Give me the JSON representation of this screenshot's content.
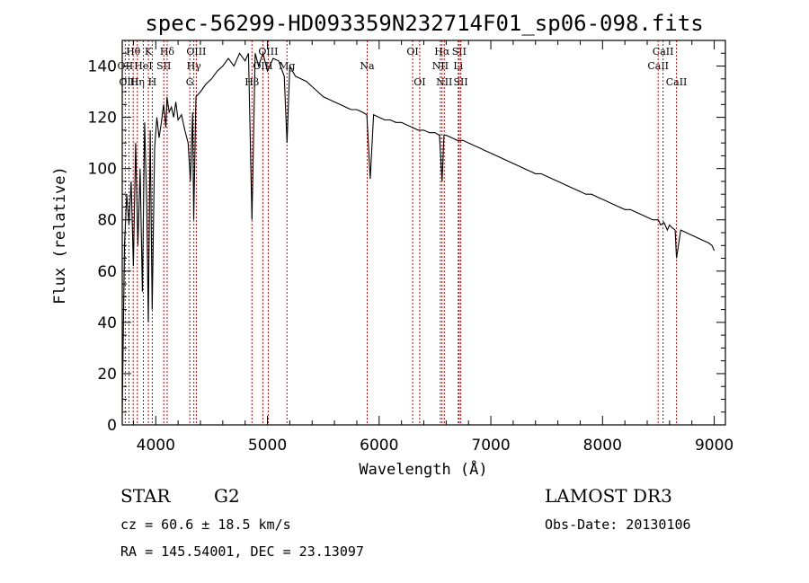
{
  "chart_data": {
    "type": "line",
    "title": "spec-56299-HD093359N232714F01_sp06-098.fits",
    "xlabel": "Wavelength (Å)",
    "ylabel": "Flux (relative)",
    "xlim": [
      3700,
      9100
    ],
    "ylim": [
      0,
      150
    ],
    "xticks": [
      4000,
      5000,
      6000,
      7000,
      8000,
      9000
    ],
    "yticks": [
      0,
      20,
      40,
      60,
      80,
      100,
      120,
      140
    ],
    "line_color": "#000000",
    "marker_color": "#cc0000",
    "series": [
      {
        "name": "spectrum",
        "x": [
          3700,
          3720,
          3740,
          3760,
          3780,
          3800,
          3820,
          3840,
          3860,
          3880,
          3900,
          3920,
          3933,
          3950,
          3968,
          3990,
          4010,
          4030,
          4050,
          4070,
          4090,
          4101,
          4120,
          4140,
          4160,
          4180,
          4200,
          4230,
          4260,
          4290,
          4310,
          4330,
          4340,
          4360,
          4400,
          4450,
          4500,
          4550,
          4600,
          4650,
          4700,
          4750,
          4800,
          4830,
          4861,
          4890,
          4920,
          4960,
          5000,
          5050,
          5100,
          5150,
          5175,
          5200,
          5250,
          5300,
          5350,
          5400,
          5450,
          5500,
          5550,
          5600,
          5650,
          5700,
          5750,
          5800,
          5850,
          5890,
          5920,
          5950,
          6000,
          6050,
          6100,
          6150,
          6200,
          6250,
          6300,
          6350,
          6400,
          6450,
          6500,
          6540,
          6563,
          6580,
          6600,
          6650,
          6700,
          6750,
          6800,
          6850,
          6900,
          6950,
          7000,
          7050,
          7100,
          7150,
          7200,
          7250,
          7300,
          7350,
          7400,
          7450,
          7500,
          7550,
          7600,
          7650,
          7700,
          7750,
          7800,
          7850,
          7900,
          7950,
          8000,
          8050,
          8100,
          8150,
          8200,
          8250,
          8300,
          8350,
          8400,
          8450,
          8500,
          8520,
          8550,
          8580,
          8600,
          8620,
          8650,
          8662,
          8700,
          8750,
          8800,
          8850,
          8900,
          8950,
          8980,
          9000
        ],
        "y": [
          5,
          70,
          90,
          78,
          95,
          62,
          110,
          70,
          100,
          52,
          118,
          85,
          40,
          115,
          45,
          108,
          120,
          112,
          118,
          125,
          116,
          128,
          122,
          124,
          120,
          126,
          119,
          121,
          115,
          110,
          95,
          122,
          80,
          128,
          130,
          133,
          135,
          138,
          140,
          143,
          140,
          145,
          142,
          145,
          80,
          145,
          140,
          145,
          138,
          143,
          142,
          136,
          110,
          140,
          136,
          135,
          134,
          132,
          130,
          128,
          127,
          126,
          125,
          124,
          123,
          123,
          122,
          121,
          96,
          121,
          120,
          119,
          119,
          118,
          118,
          117,
          116,
          115,
          115,
          114,
          114,
          113,
          95,
          113,
          113,
          112,
          111,
          111,
          110,
          109,
          108,
          107,
          106,
          105,
          104,
          103,
          102,
          101,
          100,
          99,
          98,
          98,
          97,
          96,
          95,
          94,
          93,
          92,
          91,
          90,
          90,
          89,
          88,
          87,
          86,
          85,
          84,
          84,
          83,
          82,
          81,
          80,
          80,
          78,
          79,
          76,
          78,
          77,
          76,
          65,
          76,
          75,
          74,
          73,
          72,
          71,
          70,
          68
        ]
      }
    ],
    "markers": [
      {
        "name": "Hθ",
        "x": 3798,
        "row": 0
      },
      {
        "name": "OII",
        "x": 3727,
        "row": 1
      },
      {
        "name": "Hη",
        "x": 3835,
        "row": 2
      },
      {
        "name": "OIII",
        "x": 3760,
        "row": 2
      },
      {
        "name": "HeI",
        "x": 3889,
        "row": 1
      },
      {
        "name": "K",
        "x": 3934,
        "row": 0
      },
      {
        "name": "H",
        "x": 3969,
        "row": 2
      },
      {
        "name": "SII",
        "x": 4072,
        "row": 1
      },
      {
        "name": "Hδ",
        "x": 4102,
        "row": 0
      },
      {
        "name": "OIII",
        "x": 4363,
        "row": 0
      },
      {
        "name": "Hγ",
        "x": 4341,
        "row": 1
      },
      {
        "name": "G",
        "x": 4305,
        "row": 2
      },
      {
        "name": "Hβ",
        "x": 4861,
        "row": 2
      },
      {
        "name": "OIII",
        "x": 4959,
        "row": 1
      },
      {
        "name": "OIII",
        "x": 5007,
        "row": 0
      },
      {
        "name": "Mg",
        "x": 5175,
        "row": 1
      },
      {
        "name": "Na",
        "x": 5893,
        "row": 1
      },
      {
        "name": "OI",
        "x": 6300,
        "row": 0
      },
      {
        "name": "OI",
        "x": 6363,
        "row": 2
      },
      {
        "name": "Hα",
        "x": 6563,
        "row": 0
      },
      {
        "name": "NII",
        "x": 6548,
        "row": 1
      },
      {
        "name": "NII",
        "x": 6583,
        "row": 2
      },
      {
        "name": "SII",
        "x": 6717,
        "row": 0
      },
      {
        "name": "Li",
        "x": 6708,
        "row": 1
      },
      {
        "name": "SII",
        "x": 6731,
        "row": 2
      },
      {
        "name": "CaII",
        "x": 8498,
        "row": 1
      },
      {
        "name": "CaII",
        "x": 8542,
        "row": 0
      },
      {
        "name": "CaII",
        "x": 8662,
        "row": 2
      }
    ]
  },
  "info": {
    "object_class": "STAR",
    "subclass": "G2",
    "survey": "LAMOST DR3",
    "cz": "cz = 60.6 ± 18.5 km/s",
    "obs_date": "Obs-Date: 20130106",
    "coords": "RA = 145.54001, DEC =  23.13097"
  }
}
